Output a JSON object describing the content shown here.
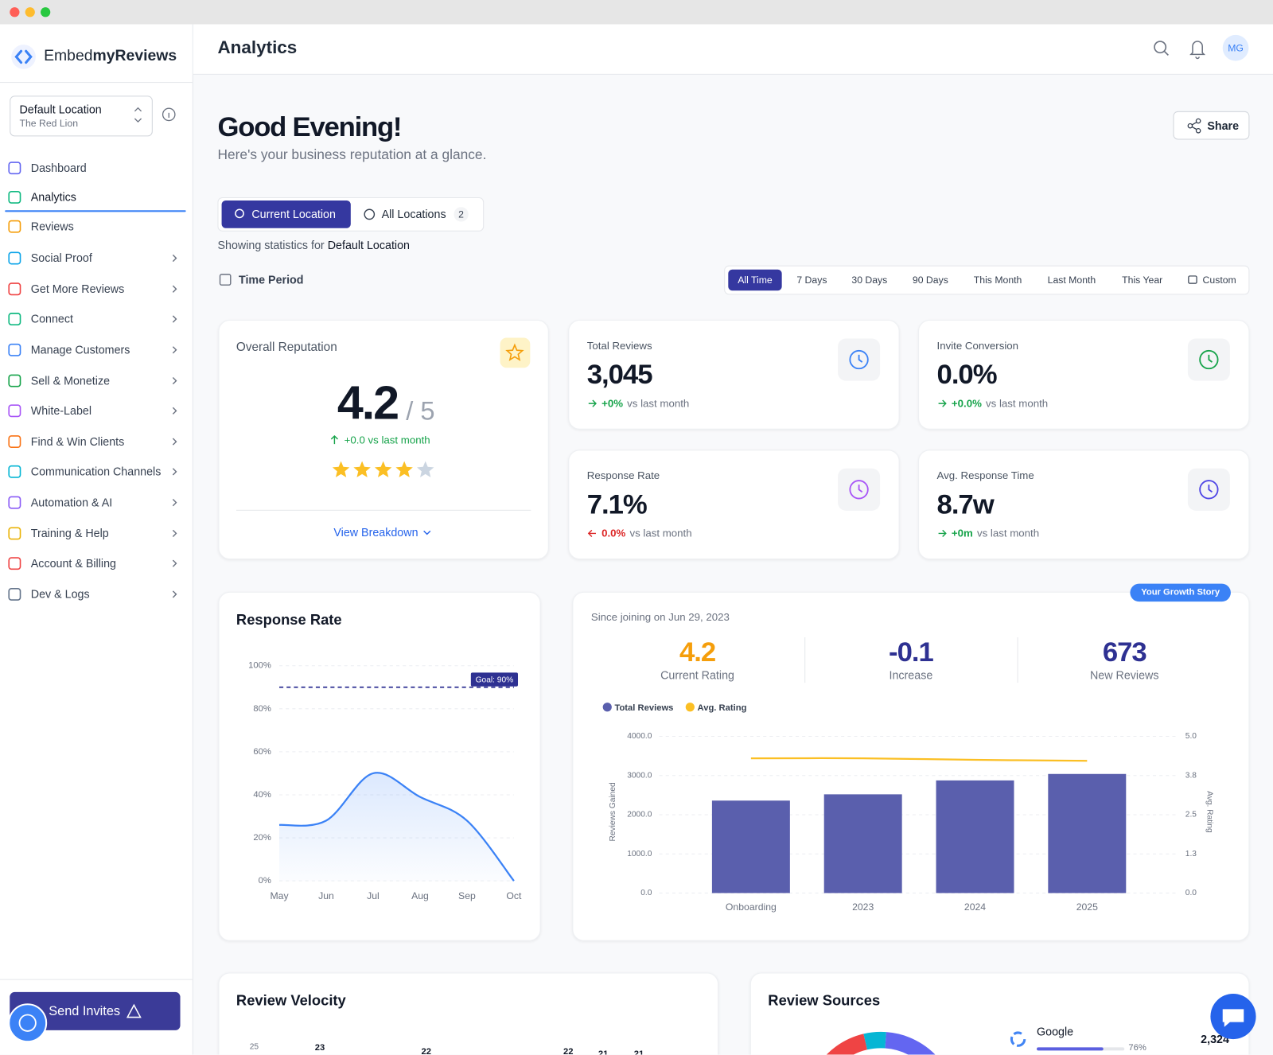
{
  "sidebar": {
    "brand_prefix": "Embed",
    "brand_bold": "myReviews",
    "location": {
      "name": "Default Location",
      "sub": "The Red Lion"
    },
    "nav": [
      {
        "label": "Dashboard",
        "color": "#6366f1",
        "expandable": false
      },
      {
        "label": "Analytics",
        "color": "#10b981",
        "expandable": false,
        "active": true
      },
      {
        "label": "Reviews",
        "color": "#f59e0b",
        "expandable": false
      },
      {
        "label": "Social Proof",
        "color": "#0ea5e9",
        "expandable": true
      },
      {
        "label": "Get More Reviews",
        "color": "#ef4444",
        "expandable": true
      },
      {
        "label": "Connect",
        "color": "#10b981",
        "expandable": true
      },
      {
        "label": "Manage Customers",
        "color": "#3b82f6",
        "expandable": true
      },
      {
        "label": "Sell & Monetize",
        "color": "#16a34a",
        "expandable": true
      },
      {
        "label": "White-Label",
        "color": "#a855f7",
        "expandable": true
      },
      {
        "label": "Find & Win Clients",
        "color": "#f97316",
        "expandable": true
      },
      {
        "label": "Communication Channels",
        "color": "#06b6d4",
        "expandable": true
      },
      {
        "label": "Automation & AI",
        "color": "#8b5cf6",
        "expandable": true
      },
      {
        "label": "Training & Help",
        "color": "#eab308",
        "expandable": true
      },
      {
        "label": "Account & Billing",
        "color": "#ef4444",
        "expandable": true
      },
      {
        "label": "Dev & Logs",
        "color": "#64748b",
        "expandable": true
      }
    ],
    "send_invites": "Send Invites"
  },
  "header": {
    "title": "Analytics",
    "avatar": "MG"
  },
  "greeting": {
    "title": "Good Evening!",
    "subtitle": "Here's your business reputation at a glance.",
    "share": "Share"
  },
  "location_tabs": {
    "current": "Current Location",
    "all": "All Locations",
    "all_count": 2,
    "showing_prefix": "Showing statistics for",
    "showing_name": "Default Location"
  },
  "time_period": {
    "label": "Time Period",
    "options": [
      "All Time",
      "7 Days",
      "30 Days",
      "90 Days",
      "This Month",
      "Last Month",
      "This Year",
      "Custom"
    ],
    "active": 0
  },
  "reputation": {
    "title": "Overall Reputation",
    "rating": "4.2",
    "out_of": "/ 5",
    "change": "+0.0 vs last month",
    "stars": 4,
    "link": "View Breakdown"
  },
  "stats": [
    {
      "title": "Total Reviews",
      "value": "3,045",
      "change": "+0%",
      "suffix": "vs last month",
      "trend": "positive",
      "icon_color": "#3b82f6"
    },
    {
      "title": "Invite Conversion",
      "value": "0.0%",
      "change": "+0.0%",
      "suffix": "vs last month",
      "trend": "positive",
      "icon_color": "#16a34a"
    },
    {
      "title": "Response Rate",
      "value": "7.1%",
      "change": "0.0%",
      "suffix": "vs last month",
      "trend": "negative",
      "icon_color": "#a855f7"
    },
    {
      "title": "Avg. Response Time",
      "value": "8.7w",
      "change": "+0m",
      "suffix": "vs last month",
      "trend": "positive",
      "icon_color": "#4f46e5"
    }
  ],
  "response_chart": {
    "type": "line",
    "title": "Response Rate",
    "categories": [
      "May",
      "Jun",
      "Jul",
      "Aug",
      "Sep",
      "Oct"
    ],
    "values": [
      26,
      28,
      50,
      39,
      28,
      0
    ],
    "color": "#3b82f6",
    "ylim": [
      0,
      100
    ],
    "yticks": [
      {
        "value": 0,
        "label": "0%"
      },
      {
        "value": 20,
        "label": "20%"
      },
      {
        "value": 40,
        "label": "40%"
      },
      {
        "value": 60,
        "label": "60%"
      },
      {
        "value": 80,
        "label": "80%"
      },
      {
        "value": 100,
        "label": "100%"
      }
    ],
    "grid": true,
    "goal": {
      "value": 90,
      "label": "Goal: 90%"
    }
  },
  "growth": {
    "badge": "Your Growth Story",
    "since": "Since joining on Jun 29, 2023",
    "metrics": [
      {
        "value": "4.2",
        "label": "Current Rating",
        "color": "#f59e0b"
      },
      {
        "value": "-0.1",
        "label": "Increase",
        "color": "#2e3192"
      },
      {
        "value": "673",
        "label": "New Reviews",
        "color": "#2e3192"
      }
    ],
    "chart": {
      "type": "bar",
      "categories": [
        "Onboarding",
        "2023",
        "2024",
        "2025"
      ],
      "series": [
        {
          "name": "Total Reviews",
          "color": "#5a5fad",
          "values": [
            2360,
            2520,
            2875,
            3040
          ]
        },
        {
          "name": "Avg. Rating",
          "color": "#fbbf24",
          "axis": "y2",
          "values": [
            4.3,
            4.3,
            4.25,
            4.22
          ]
        }
      ],
      "ylim": [
        0,
        4000
      ],
      "yticks": [
        {
          "value": 0,
          "label": "0.0"
        },
        {
          "value": 1000,
          "label": "1000.0"
        },
        {
          "value": 2000,
          "label": "2000.0"
        },
        {
          "value": 3000,
          "label": "3000.0"
        },
        {
          "value": 4000,
          "label": "4000.0"
        }
      ],
      "y2lim": [
        0,
        5
      ],
      "y2ticks": [
        {
          "value": 0,
          "label": "0.0"
        },
        {
          "value": 1.25,
          "label": "1.3"
        },
        {
          "value": 2.5,
          "label": "2.5"
        },
        {
          "value": 3.75,
          "label": "3.8"
        },
        {
          "value": 5,
          "label": "5.0"
        }
      ],
      "ylabel": "Reviews Gained",
      "y2label": "Avg. Rating",
      "grid": true
    }
  },
  "velocity": {
    "title": "Review Velocity",
    "ytick": "25",
    "labels": [
      "23",
      "22",
      "22",
      "21",
      "21"
    ]
  },
  "sources": {
    "title": "Review Sources",
    "items": [
      {
        "name": "Google",
        "percent": "76%",
        "count": "2,324"
      }
    ]
  }
}
